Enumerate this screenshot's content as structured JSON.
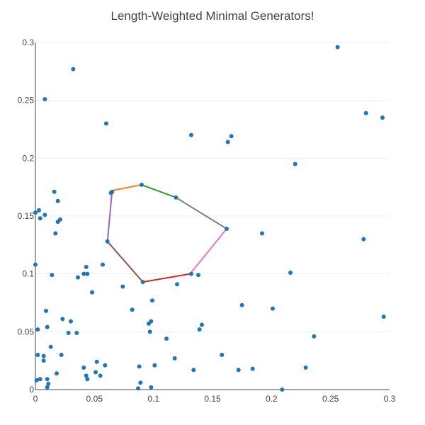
{
  "chart_data": {
    "type": "scatter",
    "title": "Length-Weighted Minimal Generators!",
    "xlabel": "",
    "ylabel": "",
    "xlim": [
      0,
      0.3
    ],
    "ylim": [
      0,
      0.3
    ],
    "x_ticks": [
      0,
      0.05,
      0.1,
      0.15,
      0.2,
      0.25,
      0.3
    ],
    "x_tick_labels": [
      "0",
      "0.05",
      "0.1",
      "0.15",
      "0.2",
      "0.25",
      "0.3"
    ],
    "y_ticks": [
      0,
      0.05,
      0.1,
      0.15,
      0.2,
      0.25,
      0.3
    ],
    "y_tick_labels": [
      "0",
      "0.05",
      "0.1",
      "0.15",
      "0.2",
      "0.25",
      "0.3"
    ],
    "grid": true,
    "legend": false,
    "point_color": "#1f77b4",
    "points": [
      [
        0.032,
        0.277
      ],
      [
        0.256,
        0.296
      ],
      [
        0.008,
        0.251
      ],
      [
        0.06,
        0.23
      ],
      [
        0.132,
        0.22
      ],
      [
        0.166,
        0.219
      ],
      [
        0.163,
        0.214
      ],
      [
        0.22,
        0.195
      ],
      [
        0.28,
        0.239
      ],
      [
        0.294,
        0.235
      ],
      [
        0.016,
        0.171
      ],
      [
        0.019,
        0.163
      ],
      [
        0.064,
        0.17
      ],
      [
        0.065,
        0.171
      ],
      [
        0.09,
        0.177
      ],
      [
        0.119,
        0.166
      ],
      [
        0.003,
        0.155
      ],
      [
        0.0,
        0.153
      ],
      [
        0.004,
        0.148
      ],
      [
        0.008,
        0.151
      ],
      [
        0.021,
        0.147
      ],
      [
        0.019,
        0.145
      ],
      [
        0.017,
        0.135
      ],
      [
        0.162,
        0.139
      ],
      [
        0.192,
        0.135
      ],
      [
        0.278,
        0.13
      ],
      [
        0.061,
        0.128
      ],
      [
        0.0,
        0.108
      ],
      [
        0.057,
        0.108
      ],
      [
        0.043,
        0.106
      ],
      [
        0.041,
        0.1
      ],
      [
        0.044,
        0.1
      ],
      [
        0.014,
        0.099
      ],
      [
        0.036,
        0.097
      ],
      [
        0.132,
        0.1
      ],
      [
        0.138,
        0.099
      ],
      [
        0.216,
        0.101
      ],
      [
        0.091,
        0.093
      ],
      [
        0.12,
        0.091
      ],
      [
        0.074,
        0.089
      ],
      [
        0.048,
        0.084
      ],
      [
        0.099,
        0.077
      ],
      [
        0.175,
        0.073
      ],
      [
        0.201,
        0.07
      ],
      [
        0.009,
        0.068
      ],
      [
        0.082,
        0.069
      ],
      [
        0.023,
        0.061
      ],
      [
        0.03,
        0.059
      ],
      [
        0.098,
        0.059
      ],
      [
        0.096,
        0.057
      ],
      [
        0.141,
        0.056
      ],
      [
        0.139,
        0.052
      ],
      [
        0.002,
        0.052
      ],
      [
        0.01,
        0.054
      ],
      [
        0.097,
        0.05
      ],
      [
        0.028,
        0.049
      ],
      [
        0.035,
        0.049
      ],
      [
        0.236,
        0.046
      ],
      [
        0.295,
        0.063
      ],
      [
        0.111,
        0.044
      ],
      [
        0.013,
        0.037
      ],
      [
        0.002,
        0.03
      ],
      [
        0.022,
        0.03
      ],
      [
        0.007,
        0.029
      ],
      [
        0.007,
        0.025
      ],
      [
        0.052,
        0.024
      ],
      [
        0.118,
        0.027
      ],
      [
        0.158,
        0.03
      ],
      [
        0.059,
        0.021
      ],
      [
        0.041,
        0.019
      ],
      [
        0.088,
        0.02
      ],
      [
        0.101,
        0.021
      ],
      [
        0.229,
        0.019
      ],
      [
        0.018,
        0.014
      ],
      [
        0.051,
        0.015
      ],
      [
        0.055,
        0.012
      ],
      [
        0.043,
        0.012
      ],
      [
        0.044,
        0.009
      ],
      [
        0.134,
        0.017
      ],
      [
        0.172,
        0.017
      ],
      [
        0.184,
        0.018
      ],
      [
        0.001,
        0.008
      ],
      [
        0.004,
        0.009
      ],
      [
        0.01,
        0.009
      ],
      [
        0.011,
        0.005
      ],
      [
        0.01,
        0.002
      ],
      [
        0.089,
        0.006
      ],
      [
        0.087,
        0.001
      ],
      [
        0.098,
        0.002
      ],
      [
        0.209,
        0.0
      ]
    ],
    "cycle_segments": [
      {
        "from": [
          0.065,
          0.172
        ],
        "to": [
          0.09,
          0.177
        ],
        "color": "#ff7f0e"
      },
      {
        "from": [
          0.09,
          0.177
        ],
        "to": [
          0.119,
          0.166
        ],
        "color": "#2ca02c"
      },
      {
        "from": [
          0.119,
          0.166
        ],
        "to": [
          0.162,
          0.139
        ],
        "color": "#7f7f7f"
      },
      {
        "from": [
          0.162,
          0.139
        ],
        "to": [
          0.131,
          0.1
        ],
        "color": "#e377c2"
      },
      {
        "from": [
          0.131,
          0.1
        ],
        "to": [
          0.091,
          0.093
        ],
        "color": "#d62728"
      },
      {
        "from": [
          0.091,
          0.093
        ],
        "to": [
          0.061,
          0.128
        ],
        "color": "#8c564b"
      },
      {
        "from": [
          0.061,
          0.128
        ],
        "to": [
          0.065,
          0.172
        ],
        "color": "#9467bd"
      }
    ]
  }
}
